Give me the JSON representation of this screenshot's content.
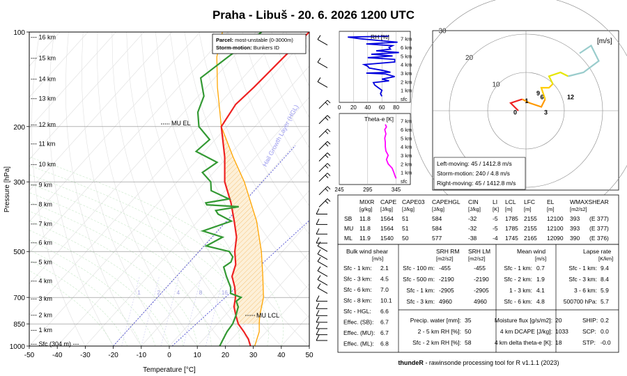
{
  "title": "Praha - Libuš - 20. 6. 2026 1200 UTC",
  "footer": {
    "brand": "thundeR",
    "text": " - rawinsonde processing tool for R v1.1.1 (2023)"
  },
  "chart_data": [
    {
      "type": "line",
      "id": "skewt",
      "xlabel": "Temperature [°C]",
      "ylabel": "Pressure [hPa]",
      "xlim": [
        -50,
        50
      ],
      "ylim": [
        1000,
        100
      ],
      "y_scale": "log",
      "x_ticks": [
        -50,
        -40,
        -30,
        -20,
        -10,
        0,
        10,
        20,
        30,
        40,
        50
      ],
      "y_ticks": [
        100,
        200,
        300,
        500,
        700,
        850,
        1000
      ],
      "height_labels": [
        {
          "label": "16 km",
          "p": 104
        },
        {
          "label": "15 km",
          "p": 121
        },
        {
          "label": "14 km",
          "p": 141
        },
        {
          "label": "13 km",
          "p": 163
        },
        {
          "label": "12 km",
          "p": 197
        },
        {
          "label": "11 km",
          "p": 227
        },
        {
          "label": "10 km",
          "p": 264
        },
        {
          "label": "9 km",
          "p": 307
        },
        {
          "label": "8 km",
          "p": 354
        },
        {
          "label": "7 km",
          "p": 408
        },
        {
          "label": "6 km",
          "p": 469
        },
        {
          "label": "5 km",
          "p": 540
        },
        {
          "label": "4 km",
          "p": 620
        },
        {
          "label": "3 km",
          "p": 706
        },
        {
          "label": "2 km",
          "p": 796
        },
        {
          "label": "1 km",
          "p": 890
        },
        {
          "label": "Sfc (304 m)",
          "p": 985
        }
      ],
      "annotations": [
        "MU EL",
        "MU LCL",
        "Hail Growth Layer (HGL)"
      ],
      "mixing_ratio_labels": [
        "1",
        "2",
        "4",
        "8",
        "16"
      ],
      "legend": {
        "parcel_key": "Parcel:",
        "parcel": "most-unstable (0-3000m)",
        "storm_key": "Storm-motion:",
        "storm": "Bunkers ID"
      },
      "series": [
        {
          "name": "Temperature",
          "color": "#ee2222",
          "points": [
            [
              1000,
              29
            ],
            [
              975,
              27.5
            ],
            [
              950,
              26
            ],
            [
              925,
              24
            ],
            [
              900,
              22
            ],
            [
              850,
              17.5
            ],
            [
              800,
              14
            ],
            [
              750,
              10.5
            ],
            [
              700,
              8
            ],
            [
              650,
              4.5
            ],
            [
              600,
              0
            ],
            [
              550,
              -2.5
            ],
            [
              500,
              -7
            ],
            [
              450,
              -11
            ],
            [
              400,
              -17
            ],
            [
              350,
              -24
            ],
            [
              300,
              -33
            ],
            [
              250,
              -41
            ],
            [
              200,
              -52
            ],
            [
              170,
              -54
            ],
            [
              150,
              -53
            ],
            [
              120,
              -52
            ],
            [
              100,
              -51
            ]
          ]
        },
        {
          "name": "Dewpoint",
          "color": "#339933",
          "points": [
            [
              1000,
              18
            ],
            [
              950,
              17
            ],
            [
              900,
              16
            ],
            [
              850,
              15.5
            ],
            [
              800,
              14
            ],
            [
              750,
              12
            ],
            [
              720,
              9.5
            ],
            [
              700,
              10
            ],
            [
              680,
              5
            ],
            [
              650,
              3
            ],
            [
              600,
              -2
            ],
            [
              560,
              -6
            ],
            [
              540,
              -5
            ],
            [
              520,
              -6
            ],
            [
              500,
              -9
            ],
            [
              480,
              -19
            ],
            [
              450,
              -16
            ],
            [
              430,
              -25
            ],
            [
              400,
              -18
            ],
            [
              380,
              -25
            ],
            [
              370,
              -27
            ],
            [
              360,
              -20
            ],
            [
              355,
              -32
            ],
            [
              350,
              -33
            ],
            [
              340,
              -26
            ],
            [
              320,
              -35
            ],
            [
              300,
              -38
            ],
            [
              280,
              -44
            ],
            [
              260,
              -42
            ],
            [
              240,
              -53
            ],
            [
              220,
              -52
            ],
            [
              200,
              -60
            ],
            [
              180,
              -65
            ],
            [
              160,
              -68
            ],
            [
              140,
              -75
            ],
            [
              120,
              -72
            ],
            [
              100,
              -68
            ]
          ]
        },
        {
          "name": "Parcel",
          "color": "#ffa500",
          "points": [
            [
              1000,
              30.5
            ],
            [
              900,
              27.5
            ],
            [
              850,
              25
            ],
            [
              800,
              22.5
            ],
            [
              700,
              18
            ],
            [
              600,
              11
            ],
            [
              500,
              2.5
            ],
            [
              400,
              -9
            ],
            [
              300,
              -26
            ],
            [
              250,
              -38
            ],
            [
              200,
              -52
            ],
            [
              150,
              -66
            ],
            [
              120,
              -76
            ],
            [
              100,
              -82
            ]
          ]
        }
      ]
    },
    {
      "type": "line",
      "id": "rh",
      "title": "RH [%]",
      "x_ticks": [
        0,
        20,
        40,
        60,
        80
      ],
      "y_ticks": [
        "7 km",
        "6 km",
        "5 km",
        "4 km",
        "3 km",
        "2 km",
        "1 km",
        "sfc"
      ],
      "series": [
        {
          "name": "RH",
          "color": "#0000dd",
          "points": [
            [
              0.3,
              60
            ],
            [
              0.6,
              58
            ],
            [
              1.0,
              60
            ],
            [
              1.3,
              55
            ],
            [
              1.6,
              50
            ],
            [
              1.9,
              48
            ],
            [
              2.1,
              70
            ],
            [
              2.3,
              60
            ],
            [
              2.6,
              78
            ],
            [
              2.9,
              65
            ],
            [
              3.0,
              38
            ],
            [
              3.1,
              72
            ],
            [
              3.3,
              62
            ],
            [
              3.6,
              42
            ],
            [
              3.8,
              40
            ],
            [
              4.0,
              35
            ],
            [
              4.3,
              78
            ],
            [
              4.6,
              78
            ],
            [
              4.8,
              40
            ],
            [
              5.0,
              75
            ],
            [
              5.2,
              45
            ],
            [
              5.4,
              84
            ],
            [
              5.6,
              52
            ],
            [
              5.8,
              72
            ],
            [
              6.0,
              70
            ],
            [
              6.2,
              75
            ],
            [
              6.4,
              38
            ],
            [
              6.6,
              82
            ],
            [
              6.8,
              55
            ],
            [
              7.0,
              30
            ],
            [
              7.2,
              12
            ],
            [
              7.3,
              70
            ]
          ]
        }
      ]
    },
    {
      "type": "line",
      "id": "theta_e",
      "title": "Theta-e [K]",
      "x_ticks": [
        245,
        295,
        345
      ],
      "y_ticks": [
        "7 km",
        "6 km",
        "5 km",
        "4 km",
        "3 km",
        "2 km",
        "1 km",
        "sfc"
      ],
      "series": [
        {
          "name": "Theta-e",
          "color": "#ff00ff",
          "points": [
            [
              0.3,
              345
            ],
            [
              0.6,
              343
            ],
            [
              1.0,
              341
            ],
            [
              1.5,
              338
            ],
            [
              2.0,
              331
            ],
            [
              2.5,
              328
            ],
            [
              3.0,
              331
            ],
            [
              3.5,
              327
            ],
            [
              4.0,
              326
            ],
            [
              4.5,
              326
            ],
            [
              5.0,
              325
            ],
            [
              5.5,
              327
            ],
            [
              6.0,
              325
            ],
            [
              6.3,
              328
            ],
            [
              6.6,
              326
            ]
          ]
        }
      ]
    },
    {
      "type": "line",
      "id": "hodograph",
      "unit": "[m/s]",
      "rings": [
        "10",
        "20",
        "30"
      ],
      "height_labels": [
        "0",
        "1",
        "3",
        "6",
        "9",
        "12"
      ],
      "series": [
        {
          "name": "0-1 km",
          "color": "#ee2222",
          "points": [
            [
              -2,
              0
            ],
            [
              -3,
              1
            ],
            [
              -4,
              2
            ],
            [
              -1,
              3
            ]
          ]
        },
        {
          "name": "1-3 km",
          "color": "#ff9900",
          "points": [
            [
              -1,
              3
            ],
            [
              1,
              2
            ],
            [
              4,
              1
            ],
            [
              5,
              3
            ]
          ]
        },
        {
          "name": "3-6 km",
          "color": "#ffcc00",
          "points": [
            [
              5,
              3
            ],
            [
              4,
              6
            ],
            [
              6,
              6
            ],
            [
              7,
              7
            ]
          ]
        },
        {
          "name": "6-9 km",
          "color": "#e6e600",
          "points": [
            [
              7,
              7
            ],
            [
              6,
              9
            ],
            [
              9,
              10
            ],
            [
              11,
              9
            ]
          ]
        },
        {
          "name": "9-12 km",
          "color": "#99cccc",
          "points": [
            [
              11,
              9
            ],
            [
              15,
              10
            ],
            [
              19,
              13
            ],
            [
              17,
              17
            ],
            [
              14,
              15
            ]
          ]
        }
      ],
      "storm_motion": [
        "Left-moving: 45 / 1412.8 m/s",
        "Storm-motion: 240 / 4.8 m/s",
        "Right-moving: 45 / 1412.8 m/s"
      ]
    },
    {
      "type": "table",
      "id": "parcels",
      "headers": [
        [
          "MIXR",
          "[g/kg]"
        ],
        [
          "CAPE",
          "[J/kg]"
        ],
        [
          "CAPE03",
          "[J/kg]"
        ],
        [
          "CAPEHGL",
          "[J/kg]"
        ],
        [
          "CIN",
          "[J/kg]"
        ],
        [
          "LI",
          "[K]"
        ],
        [
          "LCL",
          "[m]"
        ],
        [
          "LFC",
          "[m]"
        ],
        [
          "EL",
          "[m]"
        ],
        [
          "WMAXSHEAR",
          "[m2/s2]"
        ]
      ],
      "rows": [
        [
          "SB",
          "11.8",
          "1564",
          "51",
          "584",
          "-32",
          "-5",
          "1785",
          "2155",
          "12100",
          "393",
          "(E 377)"
        ],
        [
          "MU",
          "11.8",
          "1564",
          "51",
          "584",
          "-32",
          "-5",
          "1785",
          "2155",
          "12100",
          "393",
          "(E 377)"
        ],
        [
          "ML",
          "11.9",
          "1540",
          "50",
          "577",
          "-38",
          "-4",
          "1745",
          "2165",
          "12090",
          "390",
          "(E 376)"
        ]
      ]
    },
    {
      "type": "table",
      "id": "kinematics",
      "bulk_shear": {
        "title": "Bulk wind shear",
        "unit": "[m/s]",
        "rows": [
          [
            "Sfc - 1 km:",
            "2.1"
          ],
          [
            "Sfc - 3 km:",
            "4.5"
          ],
          [
            "Sfc - 6 km:",
            "7.0"
          ],
          [
            "Sfc - 8 km:",
            "10.1"
          ],
          [
            "Sfc - HGL:",
            "6.6"
          ],
          [
            "Effec. (SB):",
            "6.7"
          ],
          [
            "Effec. (MU):",
            "6.7"
          ],
          [
            "Effec. (ML):",
            "6.8"
          ]
        ]
      },
      "srh": {
        "h1": "SRH RM",
        "h2": "SRH LM",
        "unit": "[m2/s2]",
        "rows": [
          [
            "Sfc - 100 m:",
            "-455",
            "-455"
          ],
          [
            "Sfc - 500 m:",
            "-2190",
            "-2190"
          ],
          [
            "Sfc - 1 km:",
            "-2905",
            "-2905"
          ],
          [
            "Sfc - 3 km:",
            "4960",
            "4960"
          ]
        ]
      },
      "mean_wind": {
        "title": "Mean wind",
        "unit": "[m/s]",
        "rows": [
          [
            "Sfc - 1 km:",
            "0.7"
          ],
          [
            "Sfc - 2 km:",
            "1.9"
          ],
          [
            "1 - 3 km:",
            "4.1"
          ],
          [
            "Sfc - 6 km:",
            "4.8"
          ]
        ]
      },
      "lapse_rate": {
        "title": "Lapse rate",
        "unit": "[K/km]",
        "rows": [
          [
            "Sfc - 1 km:",
            "9.4"
          ],
          [
            "Sfc - 3 km:",
            "8.4"
          ],
          [
            "3 - 6 km:",
            "5.9"
          ],
          [
            "500700 hPa:",
            "5.7"
          ]
        ]
      },
      "moisture": {
        "rows": [
          [
            "Precip. water [mm]:",
            "35"
          ],
          [
            "2 - 5 km RH [%]:",
            "50"
          ],
          [
            "Sfc - 2 km RH [%]:",
            "58"
          ]
        ]
      },
      "misc": {
        "rows": [
          [
            "Moisture flux [g/s/m2]:",
            "20"
          ],
          [
            "4 km DCAPE [J/kg]:",
            "1033"
          ],
          [
            "4 km delta theta-e [K]:",
            "18"
          ]
        ]
      },
      "composites": {
        "rows": [
          [
            "SHIP:",
            "0.2"
          ],
          [
            "SCP:",
            "0.0"
          ],
          [
            "STP:",
            "-0.0"
          ]
        ]
      }
    }
  ]
}
